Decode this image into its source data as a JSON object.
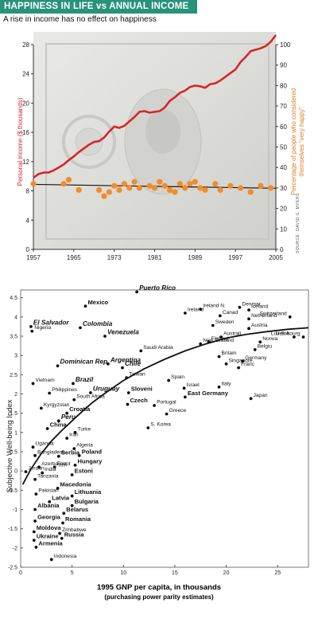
{
  "header": {
    "title": "HAPPINESS IN LIFE vs ANNUAL INCOME",
    "subtitle": "A rise in income has no effect on happiness",
    "source": "SOURCE: DAVID G. MYERS"
  },
  "colors": {
    "header_bg": "#28927a",
    "income_line": "#d8252a",
    "happy_points": "#f28c28"
  },
  "chart_data": [
    {
      "type": "line",
      "xlabel": "",
      "ylabel": "Personal income ($ thousands)",
      "y2label": "Percentage of people who considered themselves \"very happy\"",
      "xlim": [
        1957,
        2005
      ],
      "ylim": [
        0,
        28
      ],
      "y2lim": [
        0,
        100
      ],
      "x_ticks": [
        1957,
        1965,
        1973,
        1981,
        1989,
        1997,
        2005
      ],
      "y_ticks": [
        0,
        4,
        8,
        12,
        16,
        20,
        24,
        28
      ],
      "y2_ticks": [
        0,
        10,
        20,
        30,
        40,
        50,
        60,
        70,
        80,
        90,
        100
      ],
      "series": [
        {
          "name": "",
          "axis": "left",
          "x": [
            1957,
            1958,
            1959,
            1960,
            1961,
            1962,
            1963,
            1964,
            1965,
            1966,
            1967,
            1968,
            1969,
            1970,
            1971,
            1972,
            1973,
            1974,
            1975,
            1976,
            1977,
            1978,
            1979,
            1980,
            1981,
            1982,
            1983,
            1984,
            1985,
            1986,
            1987,
            1988,
            1989,
            1990,
            1991,
            1992,
            1993,
            1994,
            1995,
            1996,
            1997,
            1998,
            1999,
            2000,
            2001,
            2002,
            2003,
            2004,
            2005
          ],
          "values": [
            9.8,
            10.3,
            10.5,
            10.5,
            10.8,
            11.2,
            11.6,
            12.2,
            12.7,
            13.3,
            13.8,
            14.3,
            14.7,
            14.8,
            15.3,
            16.1,
            16.8,
            16.6,
            16.9,
            17.5,
            18.1,
            18.8,
            18.9,
            18.7,
            18.8,
            18.9,
            19.4,
            20.3,
            20.8,
            21.4,
            21.7,
            22.2,
            22.4,
            22.3,
            22.1,
            22.6,
            22.7,
            23.1,
            23.6,
            24.1,
            24.6,
            25.6,
            26.3,
            27.1,
            27.3,
            27.5,
            27.8,
            28.4,
            29.3
          ]
        },
        {
          "name": "",
          "axis": "right",
          "x": [
            1957,
            1963,
            1964,
            1966,
            1970,
            1971,
            1972,
            1973,
            1974,
            1975,
            1976,
            1977,
            1978,
            1980,
            1981,
            1982,
            1983,
            1984,
            1985,
            1986,
            1987,
            1988,
            1989,
            1990,
            1991,
            1993,
            1994,
            1996,
            1998,
            2000,
            2002,
            2004
          ],
          "values": [
            32,
            32,
            34,
            29,
            29,
            26,
            28,
            31,
            29,
            32,
            30,
            33,
            30,
            31,
            30,
            33,
            31,
            29,
            28,
            32,
            30,
            32,
            33,
            30,
            29,
            32,
            29,
            31,
            30,
            28,
            31,
            30
          ]
        }
      ]
    },
    {
      "type": "scatter",
      "xlabel": "1995 GNP per capita, in thousands",
      "xlabel_sub": "(purchasing power parity estimates)",
      "ylabel": "Subjective Well-being Index",
      "xlim": [
        0,
        28
      ],
      "ylim": [
        -2.5,
        4.7
      ],
      "x_ticks": [
        0,
        5,
        10,
        15,
        20,
        25
      ],
      "y_ticks": [
        -2.5,
        -2,
        -1.5,
        -1,
        -0.5,
        0,
        0.5,
        1,
        1.5,
        2,
        2.5,
        3,
        3.5,
        4,
        4.5
      ],
      "points": [
        {
          "label": "El Salvador",
          "x": 1.0,
          "y": 3.75,
          "style": "bi"
        },
        {
          "label": "Nigeria",
          "x": 1.1,
          "y": 3.63,
          "style": "n"
        },
        {
          "label": "Mexico",
          "x": 6.3,
          "y": 4.28,
          "style": "b"
        },
        {
          "label": "Colombia",
          "x": 5.8,
          "y": 3.72,
          "style": "bi"
        },
        {
          "label": "Venezuela",
          "x": 8.2,
          "y": 3.5,
          "style": "bi"
        },
        {
          "label": "Puerto Rico",
          "x": 11.3,
          "y": 4.65,
          "style": "bi"
        },
        {
          "label": "Ireland N.",
          "x": 17.5,
          "y": 4.2,
          "style": "n"
        },
        {
          "label": "Ireland",
          "x": 16.0,
          "y": 4.1,
          "style": "n"
        },
        {
          "label": "Denmar",
          "x": 21.3,
          "y": 4.25,
          "style": "n"
        },
        {
          "label": "Iceland",
          "x": 22.2,
          "y": 4.18,
          "style": "n"
        },
        {
          "label": "Canad",
          "x": 19.4,
          "y": 4.03,
          "style": "n"
        },
        {
          "label": "Netherland",
          "x": 22.2,
          "y": 3.95,
          "style": "n"
        },
        {
          "label": "Switzerland",
          "x": 26.2,
          "y": 4.0,
          "style": "n"
        },
        {
          "label": "Sweden",
          "x": 18.7,
          "y": 3.78,
          "style": "n"
        },
        {
          "label": "Austria",
          "x": 22.2,
          "y": 3.7,
          "style": "n"
        },
        {
          "label": "Australi",
          "x": 19.5,
          "y": 3.48,
          "style": "n"
        },
        {
          "label": "U.S.A.",
          "x": 26.6,
          "y": 3.48,
          "style": "n"
        },
        {
          "label": "Luxembourg",
          "x": 27.5,
          "y": 3.48,
          "style": "n"
        },
        {
          "label": "New Zealand",
          "x": 17.5,
          "y": 3.3,
          "style": "n"
        },
        {
          "label": "Finland",
          "x": 18.3,
          "y": 3.35,
          "style": "n"
        },
        {
          "label": "Norwa",
          "x": 23.3,
          "y": 3.35,
          "style": "n"
        },
        {
          "label": "Belgiu",
          "x": 22.8,
          "y": 3.15,
          "style": "n"
        },
        {
          "label": "Saudi Arabia",
          "x": 11.7,
          "y": 3.12,
          "style": "n"
        },
        {
          "label": "Argentina",
          "x": 8.5,
          "y": 2.78,
          "style": "bi"
        },
        {
          "label": "Chile",
          "x": 9.9,
          "y": 2.68,
          "style": "bi"
        },
        {
          "label": "Dominican Rep.",
          "x": 3.6,
          "y": 2.73,
          "style": "bi"
        },
        {
          "label": "Britain",
          "x": 19.3,
          "y": 2.97,
          "style": "n"
        },
        {
          "label": "Germany",
          "x": 21.6,
          "y": 2.85,
          "style": "n"
        },
        {
          "label": "Singapore",
          "x": 20.0,
          "y": 2.78,
          "style": "n"
        },
        {
          "label": "Franc",
          "x": 21.2,
          "y": 2.68,
          "style": "n"
        },
        {
          "label": "Vietnam",
          "x": 1.2,
          "y": 2.27,
          "style": "n"
        },
        {
          "label": "Brazil",
          "x": 5.1,
          "y": 2.27,
          "style": "bi"
        },
        {
          "label": "Taiwan",
          "x": 10.3,
          "y": 2.42,
          "style": "n"
        },
        {
          "label": "Spain",
          "x": 14.4,
          "y": 2.35,
          "style": "n"
        },
        {
          "label": "Israel",
          "x": 15.9,
          "y": 2.15,
          "style": "n"
        },
        {
          "label": "Italy",
          "x": 19.3,
          "y": 2.18,
          "style": "n"
        },
        {
          "label": "Philippines",
          "x": 2.8,
          "y": 2.02,
          "style": "n"
        },
        {
          "label": "Uruguay",
          "x": 6.8,
          "y": 2.03,
          "style": "bi"
        },
        {
          "label": "Sloveni",
          "x": 10.5,
          "y": 2.03,
          "style": "b"
        },
        {
          "label": "East Germany",
          "x": 16.0,
          "y": 1.92,
          "style": "b"
        },
        {
          "label": "Japan",
          "x": 22.4,
          "y": 1.88,
          "style": "n"
        },
        {
          "label": "South Africa",
          "x": 5.2,
          "y": 1.85,
          "style": "n"
        },
        {
          "label": "Czech",
          "x": 10.4,
          "y": 1.73,
          "style": "b"
        },
        {
          "label": "Portugal",
          "x": 13.0,
          "y": 1.7,
          "style": "n"
        },
        {
          "label": "Kyrgyzstan",
          "x": 2.0,
          "y": 1.63,
          "style": "n"
        },
        {
          "label": "Croatia",
          "x": 4.5,
          "y": 1.5,
          "style": "b"
        },
        {
          "label": "Greece",
          "x": 14.2,
          "y": 1.48,
          "style": "n"
        },
        {
          "label": "Peru",
          "x": 3.7,
          "y": 1.3,
          "style": "bi"
        },
        {
          "label": "China",
          "x": 2.6,
          "y": 1.1,
          "style": "b"
        },
        {
          "label": "S. Korea",
          "x": 12.4,
          "y": 1.12,
          "style": "n"
        },
        {
          "label": "Turke",
          "x": 5.3,
          "y": 1.0,
          "style": "n"
        },
        {
          "label": "Iran",
          "x": 4.5,
          "y": 0.85,
          "style": "n"
        },
        {
          "label": "Uganda",
          "x": 1.2,
          "y": 0.62,
          "style": "n"
        },
        {
          "label": "Algeria",
          "x": 5.2,
          "y": 0.58,
          "style": "n"
        },
        {
          "label": "Bangladesh",
          "x": 1.4,
          "y": 0.4,
          "style": "n"
        },
        {
          "label": "Serbia",
          "x": 3.7,
          "y": 0.38,
          "style": "b"
        },
        {
          "label": "Poland",
          "x": 5.7,
          "y": 0.4,
          "style": "b"
        },
        {
          "label": "Azerbaijan",
          "x": 1.8,
          "y": 0.1,
          "style": "n"
        },
        {
          "label": "Egypt",
          "x": 3.3,
          "y": 0.1,
          "style": "n"
        },
        {
          "label": "Hungary",
          "x": 5.3,
          "y": 0.15,
          "style": "b"
        },
        {
          "label": "Jordan",
          "x": 0.5,
          "y": -0.02,
          "style": "n"
        },
        {
          "label": "India",
          "x": 2.1,
          "y": -0.05,
          "style": "n"
        },
        {
          "label": "Estoni",
          "x": 5.0,
          "y": -0.1,
          "style": "b"
        },
        {
          "label": "Tanzania",
          "x": 1.4,
          "y": -0.22,
          "style": "n"
        },
        {
          "label": "Macedonia",
          "x": 3.6,
          "y": -0.45,
          "style": "b"
        },
        {
          "label": "Pakistan",
          "x": 1.5,
          "y": -0.6,
          "style": "n"
        },
        {
          "label": "Lithuania",
          "x": 5.0,
          "y": -0.65,
          "style": "b"
        },
        {
          "label": "Latvia",
          "x": 2.8,
          "y": -0.8,
          "style": "b"
        },
        {
          "label": "Bulgaria",
          "x": 5.0,
          "y": -0.9,
          "style": "b"
        },
        {
          "label": "Albania",
          "x": 1.4,
          "y": -1.0,
          "style": "b"
        },
        {
          "label": "Belarus",
          "x": 4.2,
          "y": -1.1,
          "style": "b"
        },
        {
          "label": "Georgia",
          "x": 1.4,
          "y": -1.3,
          "style": "b"
        },
        {
          "label": "Romania",
          "x": 4.1,
          "y": -1.35,
          "style": "b"
        },
        {
          "label": "Moldova",
          "x": 1.3,
          "y": -1.58,
          "style": "b"
        },
        {
          "label": "Zimbabwe",
          "x": 3.8,
          "y": -1.62,
          "style": "n"
        },
        {
          "label": "Ukraine",
          "x": 1.3,
          "y": -1.8,
          "style": "b"
        },
        {
          "label": "Russia",
          "x": 4.0,
          "y": -1.75,
          "style": "b"
        },
        {
          "label": "Armenia",
          "x": 1.5,
          "y": -1.98,
          "style": "b"
        },
        {
          "label": "Indonesia",
          "x": 3.0,
          "y": -2.3,
          "style": "n"
        }
      ],
      "fit_curve": {
        "x": [
          0.2,
          1,
          2,
          3,
          4,
          5,
          6,
          7,
          8,
          10,
          12,
          14,
          16,
          18,
          20,
          22,
          24,
          26,
          28
        ],
        "y": [
          -0.35,
          0.05,
          0.45,
          0.78,
          1.05,
          1.3,
          1.55,
          1.78,
          1.98,
          2.35,
          2.65,
          2.9,
          3.12,
          3.3,
          3.45,
          3.55,
          3.62,
          3.68,
          3.72
        ]
      }
    }
  ]
}
